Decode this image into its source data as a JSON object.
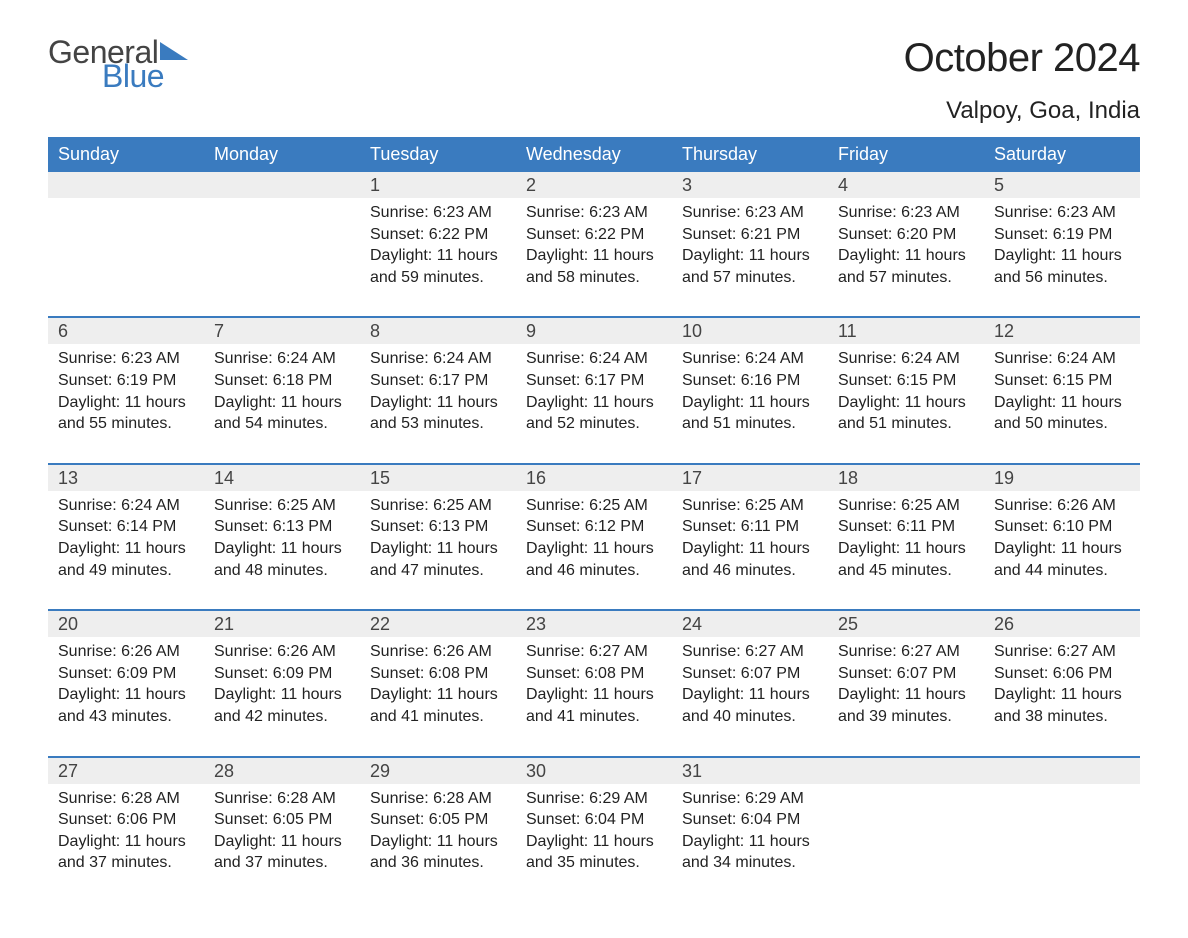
{
  "logo": {
    "text_general": "General",
    "text_blue": "Blue",
    "triangle_color": "#3a7bbf"
  },
  "header": {
    "month_title": "October 2024",
    "location": "Valpoy, Goa, India"
  },
  "colors": {
    "header_bg": "#3a7bbf",
    "header_text": "#ffffff",
    "daynum_bg": "#eeeeee",
    "row_divider": "#3a7bbf",
    "body_text": "#222222",
    "page_bg": "#ffffff"
  },
  "typography": {
    "month_title_fontsize": 40,
    "location_fontsize": 24,
    "dayheader_fontsize": 18,
    "daynum_fontsize": 18,
    "cell_fontsize": 16,
    "font_family": "Arial"
  },
  "calendar": {
    "day_headers": [
      "Sunday",
      "Monday",
      "Tuesday",
      "Wednesday",
      "Thursday",
      "Friday",
      "Saturday"
    ],
    "weeks": [
      [
        null,
        null,
        {
          "n": "1",
          "sr": "Sunrise: 6:23 AM",
          "ss": "Sunset: 6:22 PM",
          "d1": "Daylight: 11 hours",
          "d2": "and 59 minutes."
        },
        {
          "n": "2",
          "sr": "Sunrise: 6:23 AM",
          "ss": "Sunset: 6:22 PM",
          "d1": "Daylight: 11 hours",
          "d2": "and 58 minutes."
        },
        {
          "n": "3",
          "sr": "Sunrise: 6:23 AM",
          "ss": "Sunset: 6:21 PM",
          "d1": "Daylight: 11 hours",
          "d2": "and 57 minutes."
        },
        {
          "n": "4",
          "sr": "Sunrise: 6:23 AM",
          "ss": "Sunset: 6:20 PM",
          "d1": "Daylight: 11 hours",
          "d2": "and 57 minutes."
        },
        {
          "n": "5",
          "sr": "Sunrise: 6:23 AM",
          "ss": "Sunset: 6:19 PM",
          "d1": "Daylight: 11 hours",
          "d2": "and 56 minutes."
        }
      ],
      [
        {
          "n": "6",
          "sr": "Sunrise: 6:23 AM",
          "ss": "Sunset: 6:19 PM",
          "d1": "Daylight: 11 hours",
          "d2": "and 55 minutes."
        },
        {
          "n": "7",
          "sr": "Sunrise: 6:24 AM",
          "ss": "Sunset: 6:18 PM",
          "d1": "Daylight: 11 hours",
          "d2": "and 54 minutes."
        },
        {
          "n": "8",
          "sr": "Sunrise: 6:24 AM",
          "ss": "Sunset: 6:17 PM",
          "d1": "Daylight: 11 hours",
          "d2": "and 53 minutes."
        },
        {
          "n": "9",
          "sr": "Sunrise: 6:24 AM",
          "ss": "Sunset: 6:17 PM",
          "d1": "Daylight: 11 hours",
          "d2": "and 52 minutes."
        },
        {
          "n": "10",
          "sr": "Sunrise: 6:24 AM",
          "ss": "Sunset: 6:16 PM",
          "d1": "Daylight: 11 hours",
          "d2": "and 51 minutes."
        },
        {
          "n": "11",
          "sr": "Sunrise: 6:24 AM",
          "ss": "Sunset: 6:15 PM",
          "d1": "Daylight: 11 hours",
          "d2": "and 51 minutes."
        },
        {
          "n": "12",
          "sr": "Sunrise: 6:24 AM",
          "ss": "Sunset: 6:15 PM",
          "d1": "Daylight: 11 hours",
          "d2": "and 50 minutes."
        }
      ],
      [
        {
          "n": "13",
          "sr": "Sunrise: 6:24 AM",
          "ss": "Sunset: 6:14 PM",
          "d1": "Daylight: 11 hours",
          "d2": "and 49 minutes."
        },
        {
          "n": "14",
          "sr": "Sunrise: 6:25 AM",
          "ss": "Sunset: 6:13 PM",
          "d1": "Daylight: 11 hours",
          "d2": "and 48 minutes."
        },
        {
          "n": "15",
          "sr": "Sunrise: 6:25 AM",
          "ss": "Sunset: 6:13 PM",
          "d1": "Daylight: 11 hours",
          "d2": "and 47 minutes."
        },
        {
          "n": "16",
          "sr": "Sunrise: 6:25 AM",
          "ss": "Sunset: 6:12 PM",
          "d1": "Daylight: 11 hours",
          "d2": "and 46 minutes."
        },
        {
          "n": "17",
          "sr": "Sunrise: 6:25 AM",
          "ss": "Sunset: 6:11 PM",
          "d1": "Daylight: 11 hours",
          "d2": "and 46 minutes."
        },
        {
          "n": "18",
          "sr": "Sunrise: 6:25 AM",
          "ss": "Sunset: 6:11 PM",
          "d1": "Daylight: 11 hours",
          "d2": "and 45 minutes."
        },
        {
          "n": "19",
          "sr": "Sunrise: 6:26 AM",
          "ss": "Sunset: 6:10 PM",
          "d1": "Daylight: 11 hours",
          "d2": "and 44 minutes."
        }
      ],
      [
        {
          "n": "20",
          "sr": "Sunrise: 6:26 AM",
          "ss": "Sunset: 6:09 PM",
          "d1": "Daylight: 11 hours",
          "d2": "and 43 minutes."
        },
        {
          "n": "21",
          "sr": "Sunrise: 6:26 AM",
          "ss": "Sunset: 6:09 PM",
          "d1": "Daylight: 11 hours",
          "d2": "and 42 minutes."
        },
        {
          "n": "22",
          "sr": "Sunrise: 6:26 AM",
          "ss": "Sunset: 6:08 PM",
          "d1": "Daylight: 11 hours",
          "d2": "and 41 minutes."
        },
        {
          "n": "23",
          "sr": "Sunrise: 6:27 AM",
          "ss": "Sunset: 6:08 PM",
          "d1": "Daylight: 11 hours",
          "d2": "and 41 minutes."
        },
        {
          "n": "24",
          "sr": "Sunrise: 6:27 AM",
          "ss": "Sunset: 6:07 PM",
          "d1": "Daylight: 11 hours",
          "d2": "and 40 minutes."
        },
        {
          "n": "25",
          "sr": "Sunrise: 6:27 AM",
          "ss": "Sunset: 6:07 PM",
          "d1": "Daylight: 11 hours",
          "d2": "and 39 minutes."
        },
        {
          "n": "26",
          "sr": "Sunrise: 6:27 AM",
          "ss": "Sunset: 6:06 PM",
          "d1": "Daylight: 11 hours",
          "d2": "and 38 minutes."
        }
      ],
      [
        {
          "n": "27",
          "sr": "Sunrise: 6:28 AM",
          "ss": "Sunset: 6:06 PM",
          "d1": "Daylight: 11 hours",
          "d2": "and 37 minutes."
        },
        {
          "n": "28",
          "sr": "Sunrise: 6:28 AM",
          "ss": "Sunset: 6:05 PM",
          "d1": "Daylight: 11 hours",
          "d2": "and 37 minutes."
        },
        {
          "n": "29",
          "sr": "Sunrise: 6:28 AM",
          "ss": "Sunset: 6:05 PM",
          "d1": "Daylight: 11 hours",
          "d2": "and 36 minutes."
        },
        {
          "n": "30",
          "sr": "Sunrise: 6:29 AM",
          "ss": "Sunset: 6:04 PM",
          "d1": "Daylight: 11 hours",
          "d2": "and 35 minutes."
        },
        {
          "n": "31",
          "sr": "Sunrise: 6:29 AM",
          "ss": "Sunset: 6:04 PM",
          "d1": "Daylight: 11 hours",
          "d2": "and 34 minutes."
        },
        null,
        null
      ]
    ]
  }
}
